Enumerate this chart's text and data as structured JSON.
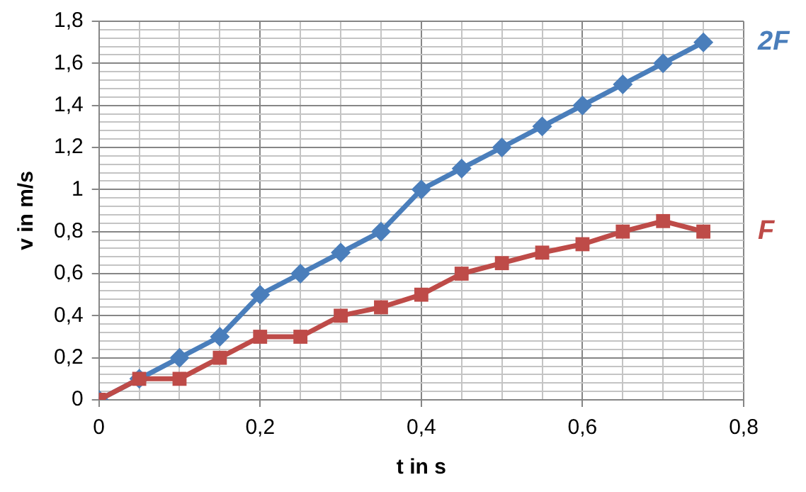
{
  "chart_data": {
    "type": "line",
    "xlabel": "t in s",
    "ylabel": "v in m/s",
    "x": [
      0,
      0.05,
      0.1,
      0.15,
      0.2,
      0.25,
      0.3,
      0.35,
      0.4,
      0.45,
      0.5,
      0.55,
      0.6,
      0.65,
      0.7,
      0.75
    ],
    "series": [
      {
        "name": "2F",
        "color": "#4a7ebb",
        "marker": "diamond",
        "values": [
          0,
          0.1,
          0.2,
          0.3,
          0.5,
          0.6,
          0.7,
          0.8,
          1.0,
          1.1,
          1.2,
          1.3,
          1.4,
          1.5,
          1.6,
          1.7
        ]
      },
      {
        "name": "F",
        "color": "#be4b48",
        "marker": "square",
        "values": [
          0,
          0.1,
          0.1,
          0.2,
          0.3,
          0.3,
          0.4,
          0.44,
          0.5,
          0.6,
          0.65,
          0.7,
          0.74,
          0.8,
          0.85,
          0.8
        ]
      }
    ],
    "xlim": [
      0,
      0.8
    ],
    "xticks": [
      0,
      {
        "value": 0.05,
        "label": null
      },
      {
        "value": 0.1,
        "label": null
      },
      {
        "value": 0.15,
        "label": null
      },
      {
        "value": 0.2,
        "label": "0,2"
      },
      {
        "value": 0.25,
        "label": null
      },
      {
        "value": 0.3,
        "label": null
      },
      {
        "value": 0.35,
        "label": null
      },
      {
        "value": 0.4,
        "label": "0,4"
      },
      {
        "value": 0.45,
        "label": null
      },
      {
        "value": 0.5,
        "label": null
      },
      {
        "value": 0.55,
        "label": null
      },
      {
        "value": 0.6,
        "label": "0,6"
      },
      {
        "value": 0.65,
        "label": null
      },
      {
        "value": 0.7,
        "label": null
      },
      {
        "value": 0.75,
        "label": null
      },
      {
        "value": 0.8,
        "label": "0,8"
      }
    ],
    "ylim": [
      0,
      1.8
    ],
    "yticks": [
      0,
      {
        "value": 0.04,
        "label": null
      },
      {
        "value": 0.08,
        "label": null
      },
      {
        "value": 0.12,
        "label": null
      },
      {
        "value": 0.16,
        "label": null
      },
      {
        "value": 0.2,
        "label": "0,2"
      },
      {
        "value": 0.24,
        "label": null
      },
      {
        "value": 0.28,
        "label": null
      },
      {
        "value": 0.32,
        "label": null
      },
      {
        "value": 0.36,
        "label": null
      },
      {
        "value": 0.4,
        "label": "0,4"
      },
      {
        "value": 0.44,
        "label": null
      },
      {
        "value": 0.48,
        "label": null
      },
      {
        "value": 0.52,
        "label": null
      },
      {
        "value": 0.56,
        "label": null
      },
      {
        "value": 0.6,
        "label": "0,6"
      },
      {
        "value": 0.64,
        "label": null
      },
      {
        "value": 0.68,
        "label": null
      },
      {
        "value": 0.72,
        "label": null
      },
      {
        "value": 0.76,
        "label": null
      },
      {
        "value": 0.8,
        "label": "0,8"
      },
      {
        "value": 0.84,
        "label": null
      },
      {
        "value": 0.88,
        "label": null
      },
      {
        "value": 0.92,
        "label": null
      },
      {
        "value": 0.96,
        "label": null
      },
      {
        "value": 1,
        "label": "1"
      },
      {
        "value": 1.04,
        "label": null
      },
      {
        "value": 1.08,
        "label": null
      },
      {
        "value": 1.12,
        "label": null
      },
      {
        "value": 1.16,
        "label": null
      },
      {
        "value": 1.2,
        "label": "1,2"
      },
      {
        "value": 1.24,
        "label": null
      },
      {
        "value": 1.28,
        "label": null
      },
      {
        "value": 1.32,
        "label": null
      },
      {
        "value": 1.36,
        "label": null
      },
      {
        "value": 1.4,
        "label": "1,4"
      },
      {
        "value": 1.44,
        "label": null
      },
      {
        "value": 1.48,
        "label": null
      },
      {
        "value": 1.52,
        "label": null
      },
      {
        "value": 1.56,
        "label": null
      },
      {
        "value": 1.6,
        "label": "1,6"
      },
      {
        "value": 1.64,
        "label": null
      },
      {
        "value": 1.68,
        "label": null
      },
      {
        "value": 1.72,
        "label": null
      },
      {
        "value": 1.76,
        "label": null
      },
      {
        "value": 1.8,
        "label": "1,8"
      }
    ],
    "grid": true,
    "legend": false,
    "line_style": "solid"
  }
}
